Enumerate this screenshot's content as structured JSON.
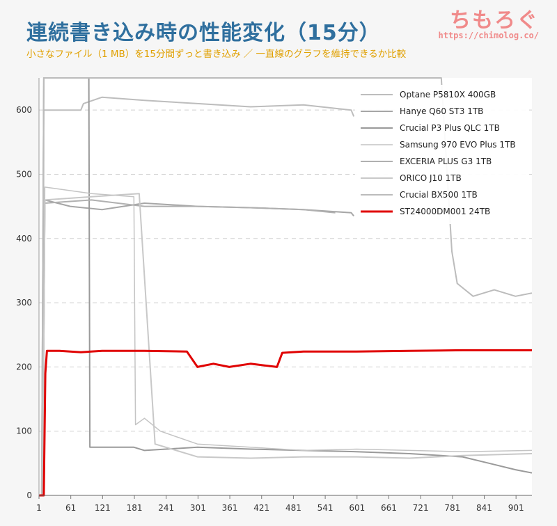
{
  "header": {
    "title": "連続書き込み時の性能変化（15分）",
    "subtitle": "小さなファイル（1 MB）を15分間ずっと書き込み ／ 一直線のグラフを維持できるか比較",
    "logo_text": "ちもろぐ",
    "logo_url": "https://chimolog.co/"
  },
  "colors": {
    "accent_red": "#e00000",
    "gray_series": "#b4b4b4",
    "title_blue": "#2f6f9e",
    "subtitle_orange": "#e0a000",
    "logo_pink": "#f08a8a"
  },
  "chart_data": {
    "type": "line",
    "xlim": [
      1,
      931
    ],
    "ylim": [
      0,
      650
    ],
    "x_ticks": [
      "1",
      "61",
      "121",
      "181",
      "241",
      "301",
      "361",
      "421",
      "481",
      "541",
      "601",
      "661",
      "721",
      "781",
      "841",
      "901"
    ],
    "y_ticks": [
      "0",
      "100",
      "200",
      "300",
      "400",
      "500",
      "600"
    ],
    "grid": "horizontal-dashed",
    "legend_position": "top-right",
    "series": [
      {
        "name": "Optane P5810X 400GB",
        "color": "#bdbdbd",
        "width": 2,
        "points": [
          [
            1,
            0
          ],
          [
            8,
            0
          ],
          [
            10,
            600
          ],
          [
            80,
            600
          ],
          [
            85,
            610
          ],
          [
            120,
            620
          ],
          [
            200,
            615
          ],
          [
            300,
            610
          ],
          [
            400,
            605
          ],
          [
            500,
            608
          ],
          [
            590,
            600
          ],
          [
            595,
            590
          ]
        ]
      },
      {
        "name": "Hanye Q60 ST3 1TB",
        "color": "#a6a6a6",
        "width": 2,
        "points": [
          [
            1,
            0
          ],
          [
            8,
            0
          ],
          [
            12,
            460
          ],
          [
            60,
            450
          ],
          [
            120,
            445
          ],
          [
            200,
            455
          ],
          [
            300,
            450
          ],
          [
            400,
            448
          ],
          [
            500,
            445
          ],
          [
            590,
            440
          ],
          [
            595,
            435
          ]
        ]
      },
      {
        "name": "Crucial P3 Plus QLC 1TB",
        "color": "#9a9a9a",
        "width": 2,
        "points": [
          [
            1,
            0
          ],
          [
            6,
            0
          ],
          [
            10,
            650
          ],
          [
            95,
            650
          ],
          [
            97,
            75
          ],
          [
            180,
            75
          ],
          [
            200,
            70
          ],
          [
            300,
            75
          ],
          [
            400,
            72
          ],
          [
            500,
            70
          ],
          [
            600,
            68
          ],
          [
            700,
            65
          ],
          [
            800,
            60
          ],
          [
            850,
            50
          ],
          [
            900,
            40
          ],
          [
            931,
            35
          ]
        ]
      },
      {
        "name": "Samsung 970 EVO Plus 1TB",
        "color": "#c4c4c4",
        "width": 1.5,
        "points": [
          [
            1,
            0
          ],
          [
            8,
            0
          ],
          [
            12,
            480
          ],
          [
            100,
            470
          ],
          [
            180,
            465
          ],
          [
            183,
            110
          ],
          [
            200,
            120
          ],
          [
            230,
            100
          ],
          [
            300,
            80
          ],
          [
            400,
            75
          ],
          [
            500,
            70
          ],
          [
            600,
            72
          ],
          [
            700,
            70
          ],
          [
            800,
            68
          ],
          [
            931,
            70
          ]
        ]
      },
      {
        "name": "EXCERIA PLUS G3 1TB",
        "color": "#b0b0b0",
        "width": 2,
        "points": [
          [
            1,
            0
          ],
          [
            8,
            0
          ],
          [
            12,
            455
          ],
          [
            100,
            460
          ],
          [
            200,
            450
          ],
          [
            300,
            450
          ],
          [
            400,
            448
          ],
          [
            500,
            445
          ],
          [
            560,
            440
          ]
        ]
      },
      {
        "name": "ORICO J10 1TB",
        "color": "#c8c8c8",
        "width": 2,
        "points": [
          [
            1,
            0
          ],
          [
            8,
            0
          ],
          [
            12,
            460
          ],
          [
            100,
            465
          ],
          [
            190,
            470
          ],
          [
            220,
            80
          ],
          [
            300,
            60
          ],
          [
            400,
            58
          ],
          [
            500,
            60
          ],
          [
            600,
            60
          ],
          [
            700,
            58
          ],
          [
            800,
            62
          ],
          [
            931,
            65
          ]
        ]
      },
      {
        "name": "Crucial BX500 1TB",
        "color": "#bcbcbc",
        "width": 2,
        "points": [
          [
            1,
            0
          ],
          [
            6,
            0
          ],
          [
            10,
            650
          ],
          [
            55,
            650
          ],
          [
            760,
            650
          ],
          [
            780,
            380
          ],
          [
            790,
            330
          ],
          [
            820,
            310
          ],
          [
            860,
            320
          ],
          [
            900,
            310
          ],
          [
            931,
            315
          ]
        ]
      },
      {
        "name": "ST24000DM001 24TB",
        "color": "#e00000",
        "width": 3,
        "points": [
          [
            1,
            0
          ],
          [
            10,
            0
          ],
          [
            13,
            190
          ],
          [
            16,
            225
          ],
          [
            40,
            225
          ],
          [
            80,
            223
          ],
          [
            120,
            225
          ],
          [
            200,
            225
          ],
          [
            280,
            224
          ],
          [
            300,
            200
          ],
          [
            330,
            205
          ],
          [
            360,
            200
          ],
          [
            400,
            205
          ],
          [
            450,
            200
          ],
          [
            460,
            222
          ],
          [
            500,
            224
          ],
          [
            600,
            224
          ],
          [
            700,
            225
          ],
          [
            800,
            226
          ],
          [
            931,
            226
          ]
        ]
      }
    ]
  }
}
